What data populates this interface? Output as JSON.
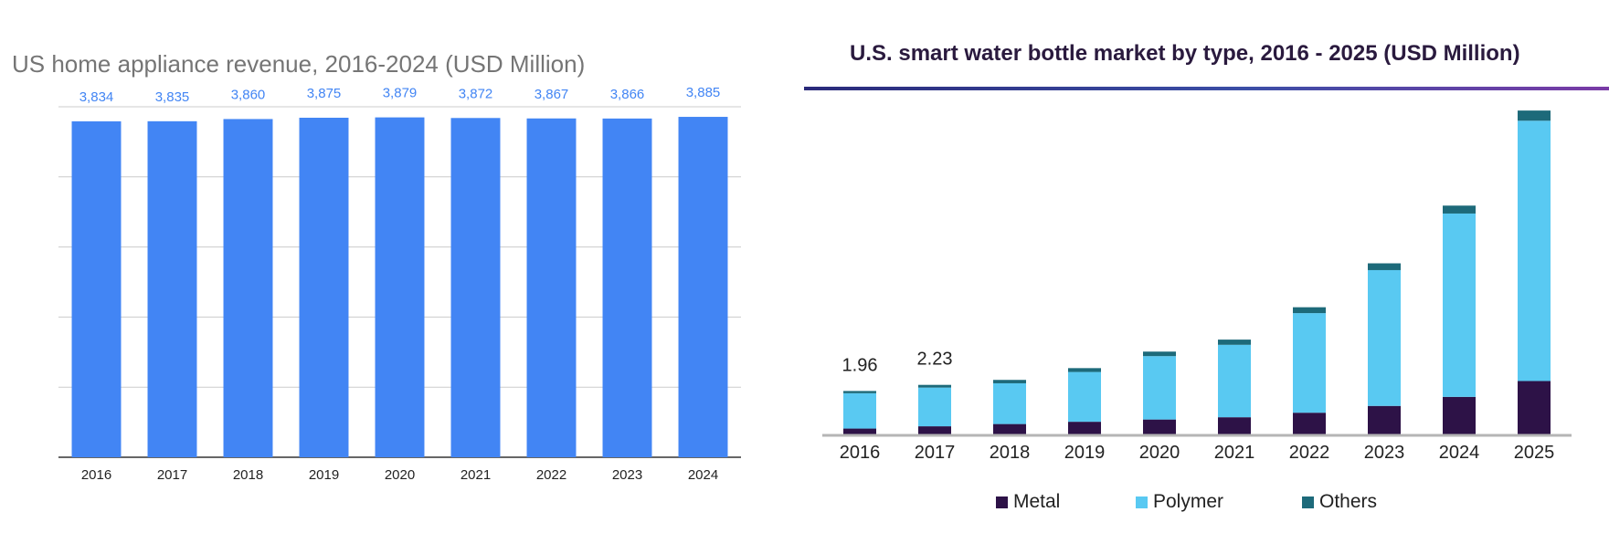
{
  "chart_data": [
    {
      "type": "bar",
      "title": "US home appliance revenue, 2016-2024 (USD Million)",
      "categories": [
        "2016",
        "2017",
        "2018",
        "2019",
        "2020",
        "2021",
        "2022",
        "2023",
        "2024"
      ],
      "values": [
        3834,
        3835,
        3860,
        3875,
        3879,
        3872,
        3867,
        3866,
        3885
      ],
      "value_labels": [
        "3,834",
        "3,835",
        "3,860",
        "3,875",
        "3,879",
        "3,872",
        "3,867",
        "3,866",
        "3,885"
      ],
      "xlabel": "",
      "ylabel": "",
      "ylim": [
        0,
        4000
      ],
      "grid": true,
      "legend": "none",
      "colors": {
        "bar": "#4285f4",
        "label": "#4285f4",
        "grid": "#cccccc",
        "axis": "#333333"
      }
    },
    {
      "type": "bar",
      "stacked": true,
      "title": "U.S. smart water bottle market by type, 2016 - 2025 (USD Million)",
      "categories": [
        "2016",
        "2017",
        "2018",
        "2019",
        "2020",
        "2021",
        "2022",
        "2023",
        "2024",
        "2025"
      ],
      "series": [
        {
          "name": "Metal",
          "values": [
            0.3,
            0.4,
            0.5,
            0.6,
            0.7,
            0.8,
            1.0,
            1.3,
            1.7,
            2.4
          ],
          "color": "#2d1247"
        },
        {
          "name": "Polymer",
          "values": [
            1.56,
            1.71,
            1.8,
            2.2,
            2.8,
            3.2,
            4.4,
            6.0,
            8.1,
            11.5
          ],
          "color": "#59c9f2"
        },
        {
          "name": "Others",
          "values": [
            0.1,
            0.12,
            0.15,
            0.17,
            0.2,
            0.23,
            0.26,
            0.3,
            0.35,
            0.45
          ],
          "color": "#1d6a7a"
        }
      ],
      "annotations": [
        {
          "category": "2016",
          "text": "1.96"
        },
        {
          "category": "2017",
          "text": "2.23"
        }
      ],
      "xlabel": "",
      "ylabel": "",
      "ylim": [
        0,
        15
      ],
      "grid": false,
      "legend": "bottom"
    }
  ]
}
